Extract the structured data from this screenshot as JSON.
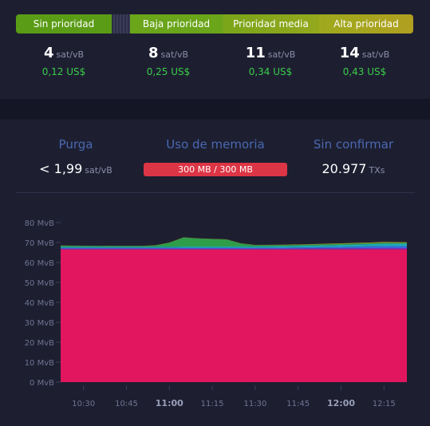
{
  "fee_bar": {
    "segments": [
      "Sin prioridad",
      "Baja prioridad",
      "Prioridad media",
      "Alta prioridad"
    ]
  },
  "fees": [
    {
      "value": "4",
      "unit": "sat/vB",
      "usd": "0,12 US$"
    },
    {
      "value": "8",
      "unit": "sat/vB",
      "usd": "0,25 US$"
    },
    {
      "value": "11",
      "unit": "sat/vB",
      "usd": "0,34 US$"
    },
    {
      "value": "14",
      "unit": "sat/vB",
      "usd": "0,43 US$"
    }
  ],
  "stats": {
    "purge": {
      "title": "Purga",
      "value": "< 1,99",
      "unit": "sat/vB"
    },
    "memory": {
      "title": "Uso de memoria",
      "value": "300 MB / 300 MB",
      "fill": 1.0
    },
    "unconfirmed": {
      "title": "Sin confirmar",
      "value": "20.977",
      "unit": "TXs"
    }
  },
  "colors": {
    "accent_title": "#4a68b0",
    "fee_usd": "#3bcc49",
    "memory_bar": "#dc3545",
    "chart_main": "#e2165e"
  },
  "chart_data": {
    "type": "area",
    "title": "",
    "xlabel": "",
    "ylabel": "",
    "ylim": [
      0,
      80
    ],
    "y_ticks": [
      "0 MvB",
      "10 MvB",
      "20 MvB",
      "30 MvB",
      "40 MvB",
      "50 MvB",
      "60 MvB",
      "70 MvB",
      "80 MvB"
    ],
    "y_tick_values": [
      0,
      10,
      20,
      30,
      40,
      50,
      60,
      70,
      80
    ],
    "x_ticks": [
      "10:30",
      "10:45",
      "11:00",
      "11:15",
      "11:30",
      "11:45",
      "12:00",
      "12:15"
    ],
    "x_ticks_bold": [
      "11:00",
      "12:00"
    ],
    "x_tick_minutes": [
      630,
      645,
      660,
      675,
      690,
      705,
      720,
      735
    ],
    "x_range_minutes": [
      622,
      743
    ],
    "x": [
      622,
      630,
      640,
      650,
      655,
      660,
      665,
      670,
      680,
      685,
      690,
      700,
      710,
      720,
      730,
      735,
      743
    ],
    "series": [
      {
        "color": "#e2165e",
        "values": [
          66.5,
          66.5,
          66.5,
          66.5,
          66.5,
          66.5,
          66.5,
          66.5,
          66.5,
          66.5,
          66.5,
          66.5,
          66.5,
          66.5,
          66.5,
          66.5,
          66.5
        ]
      },
      {
        "color": "#8a2db0",
        "values": [
          0.5,
          0.5,
          0.5,
          0.5,
          0.5,
          0.5,
          0.5,
          0.5,
          0.5,
          0.5,
          0.5,
          0.5,
          0.6,
          0.6,
          0.7,
          0.7,
          0.7
        ]
      },
      {
        "color": "#3a6bd8",
        "values": [
          0.3,
          0.3,
          0.3,
          0.3,
          0.3,
          0.3,
          0.3,
          0.3,
          0.3,
          0.3,
          0.3,
          0.4,
          0.5,
          0.7,
          0.9,
          1.0,
          1.0
        ]
      },
      {
        "color": "#1fa8b8",
        "values": [
          0.6,
          0.6,
          0.6,
          0.6,
          0.6,
          0.6,
          0.7,
          0.7,
          0.7,
          0.7,
          0.8,
          0.8,
          0.9,
          1.0,
          1.1,
          1.2,
          1.2
        ]
      },
      {
        "color": "#2e9e4a",
        "values": [
          0.5,
          0.4,
          0.3,
          0.3,
          0.6,
          2.0,
          4.5,
          4.0,
          3.5,
          1.5,
          0.6,
          0.5,
          0.5,
          0.5,
          0.5,
          0.5,
          0.4
        ]
      },
      {
        "color": "#a8a02a",
        "values": [
          0.1,
          0.1,
          0.1,
          0.1,
          0.1,
          0.1,
          0.1,
          0.1,
          0.1,
          0.1,
          0.1,
          0.2,
          0.2,
          0.3,
          0.3,
          0.4,
          0.3
        ]
      }
    ]
  }
}
